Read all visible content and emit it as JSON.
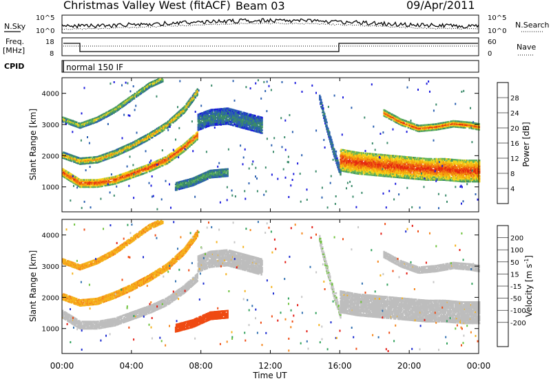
{
  "header": {
    "title": "Christmas Valley West (fitACF)",
    "beam": "Beam 03",
    "date": "09/Apr/2011"
  },
  "top_panels": {
    "nsky_label": "N.Sky",
    "nsearch_label": "N.Search",
    "noise_ticks": [
      "10^5",
      "10^0"
    ],
    "freq_label_1": "Freq.",
    "freq_label_2": "[MHz]",
    "freq_ticks": [
      "18",
      "8"
    ],
    "nave_label": "Nave",
    "nave_ticks": [
      "60",
      "0"
    ],
    "cpid_label": "CPID",
    "cpid_value": "normal 150 IF"
  },
  "colors": {
    "power_scale": [
      "#1a1adc",
      "#2a5fb0",
      "#3a8a6a",
      "#5fb25a",
      "#f5d31c",
      "#f5a80e",
      "#ef6a10",
      "#e52a10"
    ],
    "velocity_scale": [
      "#e31a12",
      "#ef4a12",
      "#f5851a",
      "#f5b21c",
      "#c6c6c6",
      "#c6c6c6",
      "#6ec23c",
      "#2fa05a",
      "#2f6fb0",
      "#1a2ad0"
    ],
    "ground_scatter": "#bdbdbd"
  },
  "chart_data": [
    {
      "type": "heatmap",
      "panel": "power",
      "xlabel": "Time UT",
      "ylabel": "Slant Range [km]",
      "x_ticks": [
        "00:00",
        "04:00",
        "08:00",
        "12:00",
        "16:00",
        "20:00",
        "00:00"
      ],
      "x_range_hours": [
        0,
        24
      ],
      "y_ticks": [
        1000,
        2000,
        3000,
        4000
      ],
      "ylim": [
        200,
        4500
      ],
      "colorbar": {
        "label": "Power [dB]",
        "ticks": [
          4,
          8,
          12,
          16,
          20,
          24,
          28
        ],
        "range": [
          0,
          32
        ]
      },
      "echo_bands": [
        {
          "name": "lower half-hop band",
          "t": [
            0,
            1,
            2,
            3,
            4,
            5,
            6,
            7,
            7.8
          ],
          "r": [
            1500,
            1150,
            1150,
            1250,
            1450,
            1650,
            1900,
            2300,
            2700
          ],
          "width_km": 250,
          "peak_db": 30
        },
        {
          "name": "middle band",
          "t": [
            0,
            1,
            2,
            3,
            4,
            5,
            6,
            7,
            7.8
          ],
          "r": [
            2050,
            1850,
            1900,
            2100,
            2350,
            2650,
            3000,
            3500,
            4100
          ],
          "width_km": 180,
          "peak_db": 22
        },
        {
          "name": "upper band",
          "t": [
            0,
            1,
            2,
            3,
            4,
            5,
            5.8
          ],
          "r": [
            3200,
            3000,
            3200,
            3500,
            3900,
            4300,
            4500
          ],
          "width_km": 160,
          "peak_db": 18
        },
        {
          "name": "08-10 UT high-range patch",
          "t": [
            7.8,
            8.5,
            9.5,
            10.5,
            11.5
          ],
          "r": [
            3100,
            3250,
            3300,
            3150,
            3000
          ],
          "width_km": 500,
          "peak_db": 10
        },
        {
          "name": "08-10 UT low-range patch",
          "t": [
            6.5,
            7.5,
            8.5,
            9.5
          ],
          "r": [
            1050,
            1200,
            1450,
            1500
          ],
          "width_km": 250,
          "peak_db": 13
        },
        {
          "name": "pre-16 UT ionospheric streak",
          "t": [
            14.8,
            15.2,
            15.6,
            16.0
          ],
          "r": [
            3900,
            3000,
            2200,
            1500
          ],
          "width_km": 250,
          "peak_db": 10
        },
        {
          "name": "post-16 UT strong band",
          "t": [
            16,
            17,
            18,
            19,
            20,
            21,
            22,
            23,
            24
          ],
          "r": [
            1900,
            1800,
            1750,
            1700,
            1650,
            1600,
            1600,
            1550,
            1550
          ],
          "width_km": 700,
          "peak_db": 30
        },
        {
          "name": "evening high-range band",
          "t": [
            18.5,
            19.5,
            20.5,
            21.5,
            22.5,
            23.5,
            24
          ],
          "r": [
            3400,
            3100,
            2900,
            2950,
            3050,
            3000,
            2950
          ],
          "width_km": 180,
          "peak_db": 28
        }
      ]
    },
    {
      "type": "heatmap",
      "panel": "velocity",
      "xlabel": "Time UT",
      "ylabel": "Slant Range [km]",
      "x_ticks": [
        "00:00",
        "04:00",
        "08:00",
        "12:00",
        "16:00",
        "20:00",
        "00:00"
      ],
      "x_range_hours": [
        0,
        24
      ],
      "y_ticks": [
        1000,
        2000,
        3000,
        4000
      ],
      "ylim": [
        200,
        4500
      ],
      "colorbar": {
        "label": "Velocity [m s^-1]",
        "ticks": [
          200,
          100,
          50,
          15,
          -15,
          -50,
          -100,
          -200
        ],
        "range": [
          -250,
          250
        ]
      },
      "echo_bands": [
        {
          "name": "ground scatter lower",
          "t": [
            0,
            1,
            2,
            3,
            4,
            5,
            6,
            7,
            7.8
          ],
          "r": [
            1500,
            1150,
            1150,
            1250,
            1450,
            1650,
            1900,
            2300,
            2700
          ],
          "width_km": 250,
          "velocity": 0
        },
        {
          "name": "ground scatter middle",
          "t": [
            0,
            1,
            2,
            3,
            4,
            5,
            6,
            7,
            7.8
          ],
          "r": [
            2050,
            1850,
            1900,
            2100,
            2350,
            2650,
            3000,
            3500,
            4100
          ],
          "width_km": 180,
          "velocity": -40
        },
        {
          "name": "ground scatter upper",
          "t": [
            0,
            1,
            2,
            3,
            4,
            5,
            5.8
          ],
          "r": [
            3200,
            3000,
            3200,
            3500,
            3900,
            4300,
            4500
          ],
          "width_km": 160,
          "velocity": -40
        },
        {
          "name": "08-10 UT high-range patch",
          "t": [
            7.8,
            8.5,
            9.5,
            10.5,
            11.5
          ],
          "r": [
            3100,
            3250,
            3300,
            3150,
            3000
          ],
          "width_km": 500,
          "velocity": 0
        },
        {
          "name": "08-10 UT low-range patch",
          "t": [
            6.5,
            7.5,
            8.5,
            9.5
          ],
          "r": [
            1050,
            1200,
            1450,
            1500
          ],
          "width_km": 250,
          "velocity": -120
        },
        {
          "name": "pre-16 UT streak",
          "t": [
            14.8,
            15.2,
            15.6,
            16.0
          ],
          "r": [
            3900,
            3000,
            2200,
            1500
          ],
          "width_km": 250,
          "velocity": 40
        },
        {
          "name": "post-16 UT ground scatter",
          "t": [
            16,
            17,
            18,
            19,
            20,
            21,
            22,
            23,
            24
          ],
          "r": [
            1900,
            1800,
            1750,
            1700,
            1650,
            1600,
            1600,
            1550,
            1550
          ],
          "width_km": 700,
          "velocity": 0
        },
        {
          "name": "evening high-range band",
          "t": [
            18.5,
            19.5,
            20.5,
            21.5,
            22.5,
            23.5,
            24
          ],
          "r": [
            3400,
            3100,
            2900,
            2950,
            3050,
            3000,
            2950
          ],
          "width_km": 180,
          "velocity": 0
        }
      ]
    }
  ]
}
